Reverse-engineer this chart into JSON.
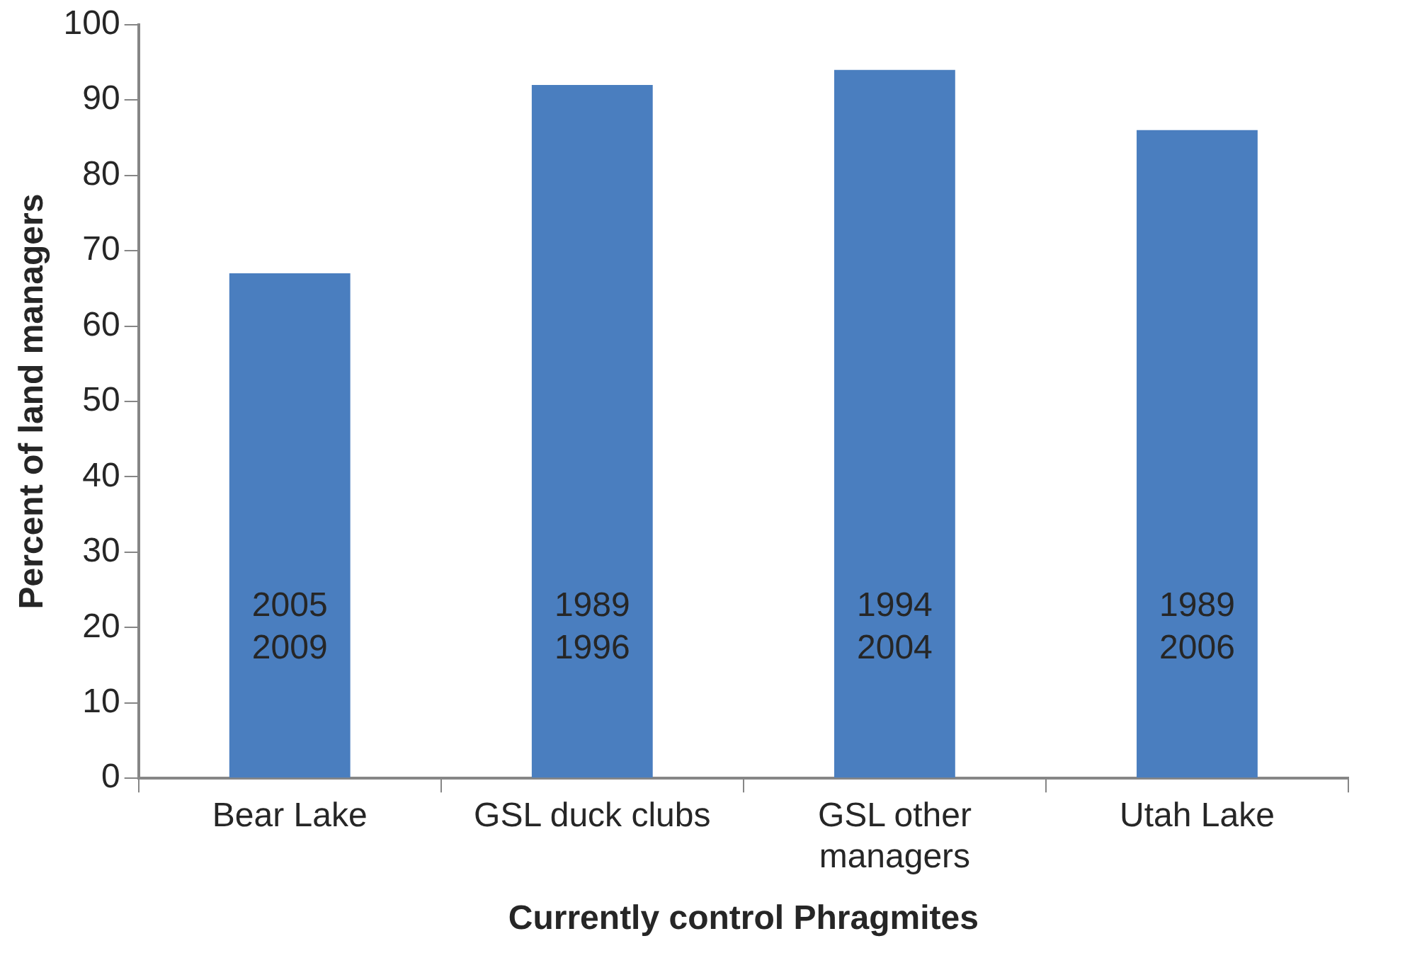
{
  "chart_data": {
    "type": "bar",
    "categories": [
      "Bear Lake",
      "GSL duck clubs",
      "GSL other managers",
      "Utah Lake"
    ],
    "values": [
      67,
      92,
      94,
      86
    ],
    "color": "#4a7ebf",
    "xlabel": "Currently control Phragmites",
    "ylabel": "Percent of land managers",
    "ylim": [
      0,
      100
    ],
    "yticks": [
      0,
      10,
      20,
      30,
      40,
      50,
      60,
      70,
      80,
      90,
      100
    ],
    "annotations": [
      "2005\n2009",
      "1989\n1996",
      "1994\n2004",
      "1989\n2006"
    ]
  }
}
